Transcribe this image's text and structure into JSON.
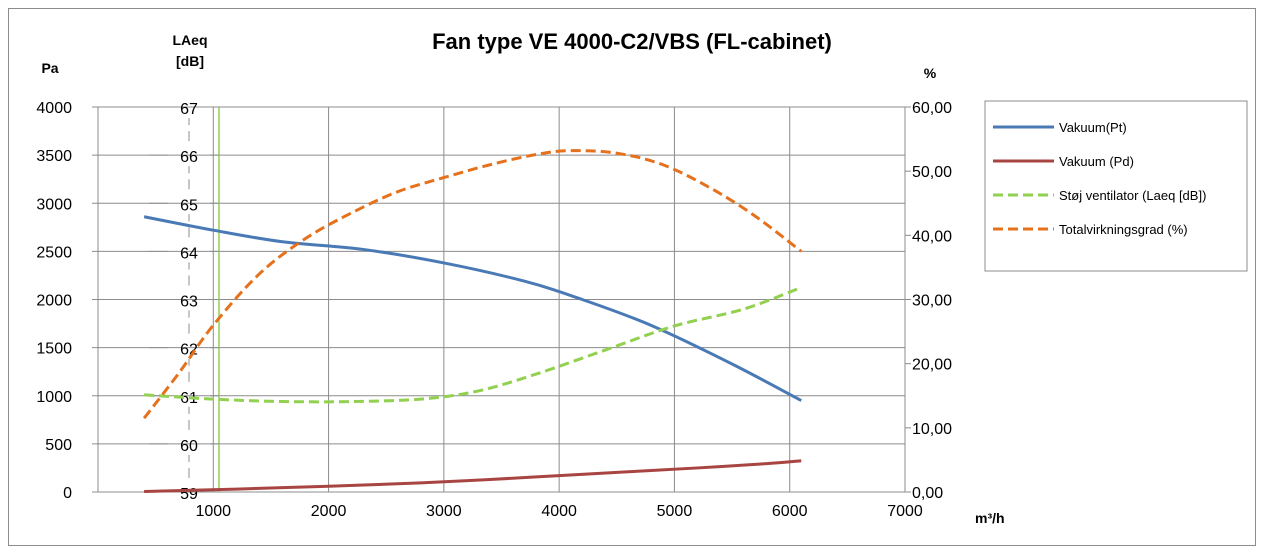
{
  "chart_data": {
    "type": "line",
    "title": "Fan type VE 4000-C2/VBS (FL-cabinet)",
    "xlabel": "m³/h",
    "xlim": [
      0,
      7000
    ],
    "x_ticks": [
      "1000",
      "2000",
      "3000",
      "4000",
      "5000",
      "6000",
      "7000"
    ],
    "axes": {
      "pa": {
        "label": "Pa",
        "lim": [
          0,
          4000
        ],
        "ticks": [
          "0",
          "500",
          "1000",
          "1500",
          "2000",
          "2500",
          "3000",
          "3500",
          "4000"
        ]
      },
      "laeq": {
        "label_line1": "LAeq",
        "label_line2": "[dB]",
        "lim": [
          59,
          67
        ],
        "ticks": [
          "59",
          "60",
          "61",
          "62",
          "63",
          "64",
          "65",
          "66",
          "67"
        ]
      },
      "pct": {
        "label": "%",
        "lim": [
          0,
          60
        ],
        "ticks": [
          "0,00",
          "10,00",
          "20,00",
          "30,00",
          "40,00",
          "50,00",
          "60,00"
        ]
      }
    },
    "grid": true,
    "legend_position": "right",
    "series": [
      {
        "name": "Vakuum(Pt)",
        "axis": "pa",
        "color": "#4a7ab5",
        "dash": false,
        "x": [
          400,
          1000,
          1600,
          2300,
          3000,
          3700,
          4200,
          4800,
          5500,
          6100
        ],
        "y": [
          2860,
          2720,
          2600,
          2520,
          2380,
          2190,
          2000,
          1730,
          1330,
          950
        ]
      },
      {
        "name": "Vakuum (Pd)",
        "axis": "pa",
        "color": "#a84542",
        "dash": false,
        "x": [
          400,
          1200,
          2000,
          2800,
          3400,
          4000,
          4600,
          5200,
          5800,
          6100
        ],
        "y": [
          5,
          30,
          60,
          95,
          130,
          170,
          210,
          250,
          295,
          325
        ]
      },
      {
        "name": "Støj ventilator (Laeq [dB])",
        "axis": "laeq",
        "color": "#92d050",
        "dash": true,
        "x": [
          400,
          1000,
          1600,
          2200,
          2800,
          3300,
          3800,
          4400,
          5000,
          5600,
          6100
        ],
        "y": [
          61.02,
          60.93,
          60.88,
          60.88,
          60.93,
          61.1,
          61.45,
          61.95,
          62.45,
          62.8,
          63.25
        ]
      },
      {
        "name": "Totalvirkningsgrad (%)",
        "axis": "pct",
        "color": "#e5711d",
        "dash": true,
        "x": [
          400,
          700,
          1000,
          1400,
          1800,
          2200,
          2600,
          3000,
          3400,
          3800,
          4100,
          4500,
          4900,
          5300,
          5700,
          6100
        ],
        "y": [
          11.5,
          18.5,
          26,
          34,
          39.5,
          43.5,
          46.8,
          49,
          51,
          52.6,
          53.2,
          52.8,
          51,
          47.5,
          43,
          37.5
        ]
      }
    ]
  }
}
